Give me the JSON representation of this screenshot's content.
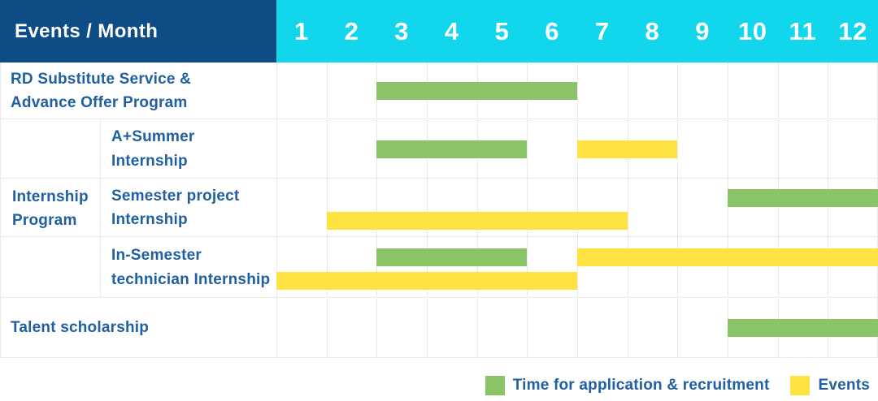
{
  "table": {
    "corner_label": "Events / Month",
    "months": [
      "1",
      "2",
      "3",
      "4",
      "5",
      "6",
      "7",
      "8",
      "9",
      "10",
      "11",
      "12"
    ],
    "group_label": "Internship\nProgram"
  },
  "legend": [
    {
      "key": "application",
      "label": "Time for application & recruitment",
      "color": "#8ac466"
    },
    {
      "key": "events",
      "label": "Events",
      "color": "#ffe342"
    }
  ],
  "colors": {
    "header_bg": "#0d4c84",
    "months_bg": "#12d6ec",
    "header_text": "#ffffff",
    "label_text": "#1f5fa2",
    "bar_green": "#8ac466",
    "bar_yellow": "#ffe342",
    "grid_line": "#eaeaea",
    "month_line": "#d4d4d4",
    "background": "#ffffff"
  },
  "chart_data": {
    "type": "gantt",
    "title": "Events / Month",
    "x_axis": {
      "unit": "month",
      "ticks": [
        1,
        2,
        3,
        4,
        5,
        6,
        7,
        8,
        9,
        10,
        11,
        12
      ],
      "range": [
        1,
        12
      ],
      "gridlines": "dotted"
    },
    "series": [
      {
        "key": "application",
        "name": "Time for application & recruitment",
        "color": "#8ac466"
      },
      {
        "key": "events",
        "name": "Events",
        "color": "#ffe342"
      }
    ],
    "rows": [
      {
        "label": "RD Substitute Service &\nAdvance Offer Program",
        "group": null,
        "bars": [
          {
            "series": "application",
            "start_month": 3,
            "end_month": 6,
            "lane": "mid"
          }
        ]
      },
      {
        "label": "A+Summer\nInternship",
        "group": "Internship Program",
        "bars": [
          {
            "series": "application",
            "start_month": 3,
            "end_month": 5,
            "lane": "mid"
          },
          {
            "series": "events",
            "start_month": 7,
            "end_month": 8,
            "lane": "mid"
          }
        ]
      },
      {
        "label": "Semester project\nInternship",
        "group": "Internship Program",
        "bars": [
          {
            "series": "application",
            "start_month": 10,
            "end_month": 12,
            "lane": "upper"
          },
          {
            "series": "events",
            "start_month": 2,
            "end_month": 7,
            "lane": "lower"
          }
        ]
      },
      {
        "label": "In-Semester\ntechnician Internship",
        "group": "Internship Program",
        "bars": [
          {
            "series": "application",
            "start_month": 3,
            "end_month": 5,
            "lane": "upper"
          },
          {
            "series": "events",
            "start_month": 7,
            "end_month": 12,
            "lane": "upper"
          },
          {
            "series": "events",
            "start_month": 1,
            "end_month": 6,
            "lane": "lower"
          }
        ]
      },
      {
        "label": "Talent scholarship",
        "group": null,
        "bars": [
          {
            "series": "application",
            "start_month": 10,
            "end_month": 12,
            "lane": "mid"
          }
        ]
      }
    ],
    "legend_position": "bottom-right"
  }
}
